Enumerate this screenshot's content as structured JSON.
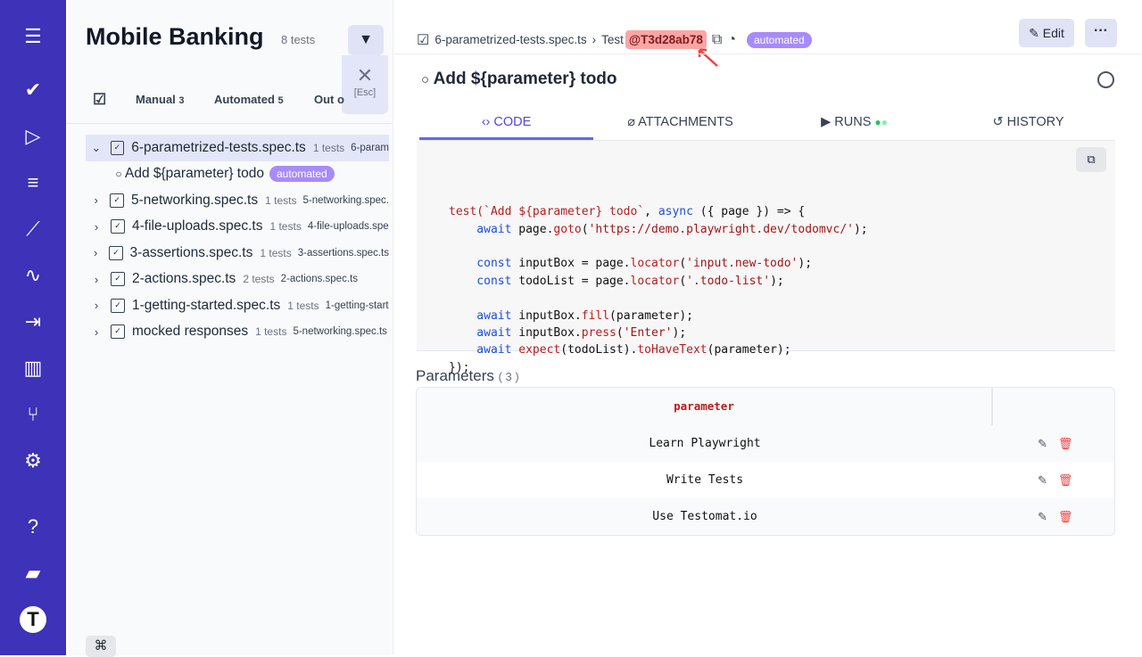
{
  "sidebar": {
    "title": "Mobile Banking",
    "count": "8 tests",
    "esc_label": "[Esc]",
    "tabs": [
      {
        "label": "Manual",
        "count": "3"
      },
      {
        "label": "Automated",
        "count": "5"
      },
      {
        "label": "Out o"
      }
    ],
    "tree": [
      {
        "name": "6-parametrized-tests.spec.ts",
        "tests": "1 tests",
        "file": "6-param",
        "expanded": true
      },
      {
        "name": "5-networking.spec.ts",
        "tests": "1 tests",
        "file": "5-networking.spec."
      },
      {
        "name": "4-file-uploads.spec.ts",
        "tests": "1 tests",
        "file": "4-file-uploads.spe"
      },
      {
        "name": "3-assertions.spec.ts",
        "tests": "1 tests",
        "file": "3-assertions.spec.ts"
      },
      {
        "name": "2-actions.spec.ts",
        "tests": "2 tests",
        "file": "2-actions.spec.ts"
      },
      {
        "name": "1-getting-started.spec.ts",
        "tests": "1 tests",
        "file": "1-getting-start"
      },
      {
        "name": "mocked responses",
        "tests": "1 tests",
        "file": "5-networking.spec.ts"
      }
    ],
    "child": {
      "name": "Add ${parameter} todo",
      "badge": "automated"
    },
    "cmd": "⌘"
  },
  "header": {
    "file": "6-parametrized-tests.spec.ts",
    "sep": "›",
    "test_label": "Test",
    "test_id": "@T3d28ab78",
    "badge": "automated",
    "edit": "Edit",
    "more": "···"
  },
  "test": {
    "title": "Add ${parameter} todo",
    "tabs": [
      {
        "label": "CODE",
        "icon": "<>"
      },
      {
        "label": "ATTACHMENTS",
        "icon": "paperclip"
      },
      {
        "label": "RUNS",
        "icon": "play"
      },
      {
        "label": "HISTORY",
        "icon": "history"
      }
    ]
  },
  "code": [
    [
      [
        "test(`Add ${parameter} todo`",
        "f"
      ],
      [
        ", ",
        "p"
      ],
      [
        "async",
        "k"
      ],
      [
        " ({ page }) => {",
        "p"
      ]
    ],
    [
      [
        "    await",
        "k"
      ],
      [
        " page.",
        "p"
      ],
      [
        "goto",
        "f"
      ],
      [
        "(",
        "p"
      ],
      [
        "'https://demo.playwright.dev/todomvc/'",
        "s"
      ],
      [
        ");",
        "p"
      ]
    ],
    [
      [
        "",
        ""
      ]
    ],
    [
      [
        "    const",
        "k"
      ],
      [
        " inputBox = page.",
        "p"
      ],
      [
        "locator",
        "f"
      ],
      [
        "(",
        "p"
      ],
      [
        "'input.new-todo'",
        "s"
      ],
      [
        ");",
        "p"
      ]
    ],
    [
      [
        "    const",
        "k"
      ],
      [
        " todoList = page.",
        "p"
      ],
      [
        "locator",
        "f"
      ],
      [
        "(",
        "p"
      ],
      [
        "'.todo-list'",
        "s"
      ],
      [
        ");",
        "p"
      ]
    ],
    [
      [
        "",
        ""
      ]
    ],
    [
      [
        "    await",
        "k"
      ],
      [
        " inputBox.",
        "p"
      ],
      [
        "fill",
        "f"
      ],
      [
        "(parameter);",
        "p"
      ]
    ],
    [
      [
        "    await",
        "k"
      ],
      [
        " inputBox.",
        "p"
      ],
      [
        "press",
        "f"
      ],
      [
        "(",
        "p"
      ],
      [
        "'Enter'",
        "s"
      ],
      [
        ");",
        "p"
      ]
    ],
    [
      [
        "    await",
        "k"
      ],
      [
        " ",
        "p"
      ],
      [
        "expect",
        "f"
      ],
      [
        "(todoList).",
        "p"
      ],
      [
        "toHaveText",
        "f"
      ],
      [
        "(parameter);",
        "p"
      ]
    ],
    [
      [
        "});",
        "p"
      ]
    ]
  ],
  "parameters": {
    "title": "Parameters",
    "count": "( 3 )",
    "column": "parameter",
    "rows": [
      "Learn Playwright",
      "Write Tests",
      "Use Testomat.io"
    ]
  }
}
